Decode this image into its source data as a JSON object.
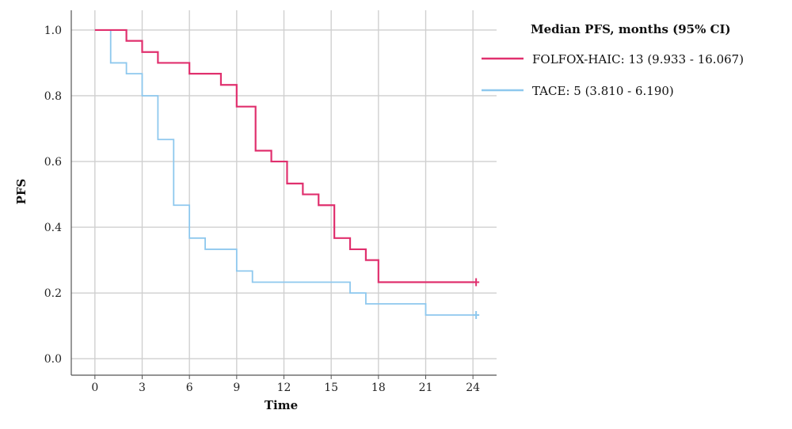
{
  "chart_data": {
    "type": "line",
    "title": "",
    "xlabel": "Time",
    "ylabel": "PFS",
    "xlim": [
      -1.5,
      25.5
    ],
    "ylim": [
      -0.05,
      1.06
    ],
    "x_ticks": [
      "0",
      "3",
      "6",
      "9",
      "12",
      "15",
      "18",
      "21",
      "24"
    ],
    "y_ticks": [
      "0.0",
      "0.2",
      "0.4",
      "0.6",
      "0.8",
      "1.0"
    ],
    "grid": true,
    "legend": {
      "title": "Median PFS, months (95% CI)",
      "position": "right"
    },
    "series": [
      {
        "name": "FOLFOX-HAIC: 13 (9.933 - 16.067)",
        "color": "#e0306e",
        "step": "post",
        "x": [
          0,
          2,
          3,
          4,
          6,
          8,
          9,
          10.2,
          11.2,
          12.2,
          13.2,
          14.2,
          15.2,
          16.2,
          17.2,
          18,
          24.2
        ],
        "y": [
          1.0,
          0.967,
          0.933,
          0.9,
          0.867,
          0.833,
          0.767,
          0.633,
          0.6,
          0.533,
          0.5,
          0.467,
          0.367,
          0.333,
          0.3,
          0.233,
          0.233
        ],
        "censored": [
          {
            "x": 24.2,
            "y": 0.233
          }
        ]
      },
      {
        "name": "TACE: 5 (3.810 - 6.190)",
        "color": "#8ec8ee",
        "step": "post",
        "x": [
          0,
          1,
          2,
          3,
          4,
          5,
          6,
          7,
          9,
          10,
          16.2,
          17.2,
          21,
          24.2
        ],
        "y": [
          1.0,
          0.9,
          0.867,
          0.8,
          0.667,
          0.467,
          0.367,
          0.333,
          0.267,
          0.233,
          0.2,
          0.167,
          0.133,
          0.133
        ],
        "censored": [
          {
            "x": 24.2,
            "y": 0.133
          }
        ]
      }
    ]
  },
  "colors": {
    "grid": "#cfcfcf",
    "axis": "#555555"
  }
}
